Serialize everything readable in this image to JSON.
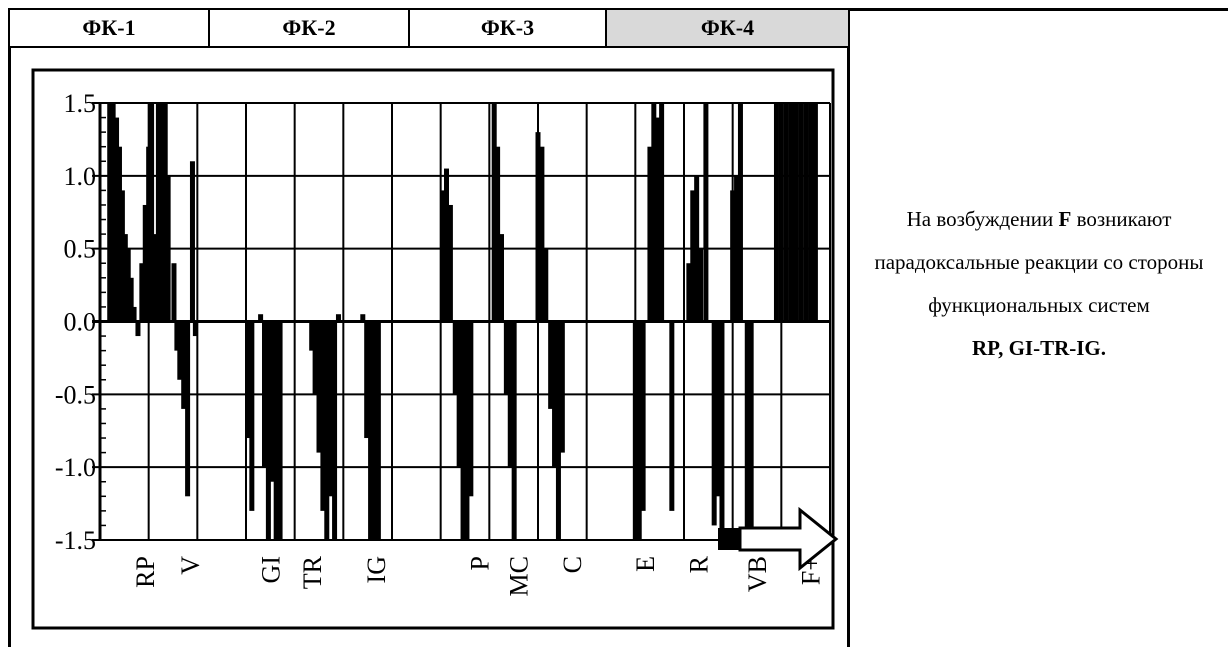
{
  "header": [
    "ФК-1",
    "ФК-2",
    "ФК-3",
    "ФК-4"
  ],
  "side_note": [
    "На возбуждении",
    "F",
    "возникают парадоксальные реакции со стороны функциональных систем",
    "RP, GI-TR-IG."
  ],
  "chart_data": {
    "type": "bar",
    "color": "#000000",
    "grid": true,
    "xlim": [
      0,
      15
    ],
    "ylim": [
      -1.5,
      1.5
    ],
    "yticks": [
      {
        "value": -1.5,
        "label": "-1.5"
      },
      {
        "value": -1,
        "label": "-1.0"
      },
      {
        "value": -0.5,
        "label": "-0.5"
      },
      {
        "value": 0,
        "label": "0.0"
      },
      {
        "value": 0.5,
        "label": "0.5"
      },
      {
        "value": 1,
        "label": "1.0"
      },
      {
        "value": 1.5,
        "label": "1.5"
      }
    ],
    "xticks": [
      {
        "value": 0.92,
        "label": "RP"
      },
      {
        "value": 1.85,
        "label": "V"
      },
      {
        "value": 3.5,
        "label": "GI"
      },
      {
        "value": 4.35,
        "label": "TR"
      },
      {
        "value": 5.67,
        "label": "IG"
      },
      {
        "value": 7.8,
        "label": "P"
      },
      {
        "value": 8.6,
        "label": "MC"
      },
      {
        "value": 9.7,
        "label": "C"
      },
      {
        "value": 11.2,
        "label": "E"
      },
      {
        "value": 12.3,
        "label": "R"
      },
      {
        "value": 13.5,
        "label": "VB"
      },
      {
        "value": 14.6,
        "label": "F+"
      }
    ],
    "x": [
      0.2,
      0.27,
      0.34,
      0.4,
      0.46,
      0.52,
      0.58,
      0.64,
      0.7,
      0.78,
      0.86,
      0.93,
      1.0,
      1.06,
      1.12,
      1.2,
      1.27,
      1.34,
      1.4,
      1.52,
      1.58,
      1.64,
      1.72,
      1.8,
      1.9,
      1.96,
      3.05,
      3.12,
      3.3,
      3.38,
      3.46,
      3.54,
      3.62,
      3.7,
      4.35,
      4.42,
      4.5,
      4.58,
      4.66,
      4.74,
      4.82,
      4.9,
      5.4,
      5.48,
      5.56,
      5.64,
      5.72,
      7.05,
      7.12,
      7.2,
      7.3,
      7.38,
      7.46,
      7.54,
      7.62,
      8.1,
      8.17,
      8.25,
      8.35,
      8.43,
      8.51,
      9.0,
      9.08,
      9.16,
      9.26,
      9.34,
      9.42,
      9.5,
      11.0,
      11.08,
      11.16,
      11.3,
      11.38,
      11.46,
      11.54,
      11.75,
      12.1,
      12.18,
      12.26,
      12.34,
      12.45,
      12.62,
      12.7,
      12.78,
      13.0,
      13.08,
      13.16,
      13.3,
      13.38,
      13.9,
      14.0,
      14.1,
      14.2,
      14.3,
      14.4,
      14.5,
      14.6,
      14.7
    ],
    "values": [
      1.5,
      1.5,
      1.4,
      1.2,
      0.9,
      0.6,
      0.5,
      0.3,
      0.1,
      -0.1,
      0.4,
      0.8,
      1.2,
      1.5,
      0.6,
      1.5,
      1.5,
      1.5,
      1.0,
      0.4,
      -0.2,
      -0.4,
      -0.6,
      -1.2,
      1.1,
      -0.1,
      -0.8,
      -1.3,
      0.05,
      -1.0,
      -1.5,
      -1.1,
      -1.5,
      -1.5,
      -0.2,
      -0.5,
      -0.9,
      -1.3,
      -1.5,
      -1.2,
      -1.5,
      0.05,
      0.05,
      -0.8,
      -1.5,
      -1.5,
      -1.5,
      0.9,
      1.05,
      0.8,
      -0.5,
      -1.0,
      -1.5,
      -1.5,
      -1.2,
      1.5,
      1.2,
      0.6,
      -0.5,
      -1.0,
      -1.5,
      1.3,
      1.2,
      0.5,
      -0.6,
      -1.0,
      -1.5,
      -0.9,
      -1.5,
      -1.5,
      -1.3,
      1.2,
      1.5,
      1.4,
      1.5,
      -1.3,
      0.4,
      0.9,
      1.0,
      0.5,
      1.5,
      -1.4,
      -1.2,
      -1.5,
      0.9,
      1.0,
      1.5,
      -1.5,
      -1.5,
      1.5,
      1.5,
      1.5,
      1.5,
      1.5,
      1.5,
      1.5,
      1.5,
      1.5
    ]
  }
}
